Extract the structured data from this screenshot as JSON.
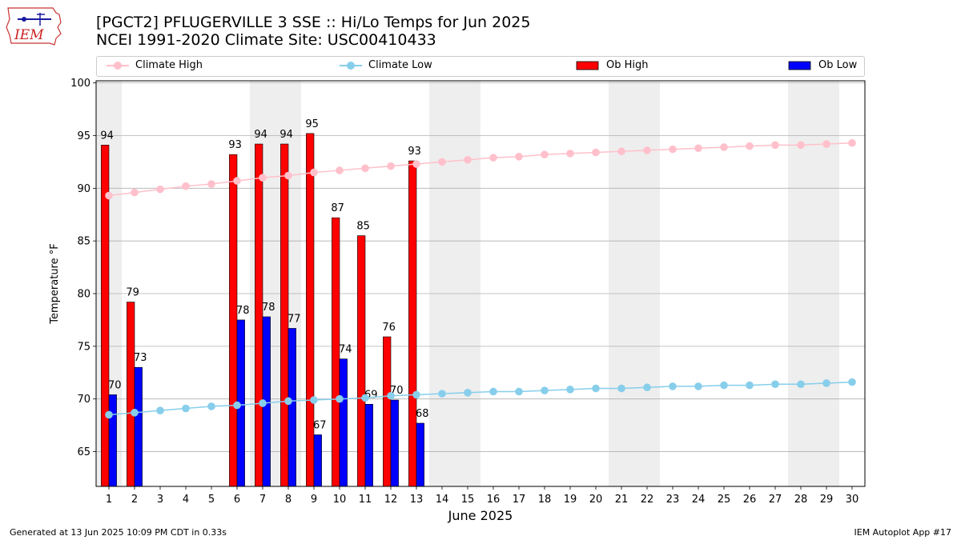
{
  "header": {
    "logo_text": "IEM",
    "title_line1": "[PGCT2] PFLUGERVILLE 3 SSE :: Hi/Lo Temps for Jun 2025",
    "title_line2": "NCEI 1991-2020 Climate Site: USC00410433"
  },
  "legend": [
    {
      "key": "climate_high",
      "label": "Climate High"
    },
    {
      "key": "climate_low",
      "label": "Climate Low"
    },
    {
      "key": "ob_high",
      "label": "Ob High"
    },
    {
      "key": "ob_low",
      "label": "Ob Low"
    }
  ],
  "colors": {
    "climate_high": "#ffc0cb",
    "climate_low": "#87ceeb",
    "ob_high": "#ff0000",
    "ob_low": "#0000ff",
    "weekend_shade": "#eeeeee",
    "grid": "#b0b0b0"
  },
  "chart_data": {
    "type": "bar",
    "xlabel": "June 2025",
    "ylabel": "Temperature °F",
    "ylim": [
      61.7,
      100.2
    ],
    "xlim": [
      0.5,
      30.5
    ],
    "yticks": [
      65,
      70,
      75,
      80,
      85,
      90,
      95,
      100
    ],
    "x": [
      1,
      2,
      3,
      4,
      5,
      6,
      7,
      8,
      9,
      10,
      11,
      12,
      13,
      14,
      15,
      16,
      17,
      18,
      19,
      20,
      21,
      22,
      23,
      24,
      25,
      26,
      27,
      28,
      29,
      30
    ],
    "shaded_day_ranges": [
      [
        0.5,
        1.5
      ],
      [
        6.5,
        8.5
      ],
      [
        13.5,
        15.5
      ],
      [
        20.5,
        22.5
      ],
      [
        27.5,
        29.5
      ]
    ],
    "grid": "horizontal",
    "series": [
      {
        "name": "Climate High",
        "type": "line",
        "values": [
          89.3,
          89.6,
          89.9,
          90.2,
          90.4,
          90.7,
          91.0,
          91.2,
          91.5,
          91.7,
          91.9,
          92.1,
          92.3,
          92.5,
          92.7,
          92.9,
          93.0,
          93.2,
          93.3,
          93.4,
          93.5,
          93.6,
          93.7,
          93.8,
          93.9,
          94.0,
          94.1,
          94.1,
          94.2,
          94.3
        ]
      },
      {
        "name": "Climate Low",
        "type": "line",
        "values": [
          68.5,
          68.7,
          68.9,
          69.1,
          69.3,
          69.4,
          69.6,
          69.8,
          69.9,
          70.0,
          70.1,
          70.3,
          70.4,
          70.5,
          70.6,
          70.7,
          70.7,
          70.8,
          70.9,
          71.0,
          71.0,
          71.1,
          71.2,
          71.2,
          71.3,
          71.3,
          71.4,
          71.4,
          71.5,
          71.6
        ]
      },
      {
        "name": "Ob High",
        "type": "bar",
        "values": [
          94.1,
          79.2,
          null,
          null,
          null,
          93.2,
          94.2,
          94.2,
          95.2,
          87.2,
          85.5,
          75.9,
          92.6,
          null,
          null,
          null,
          null,
          null,
          null,
          null,
          null,
          null,
          null,
          null,
          null,
          null,
          null,
          null,
          null,
          null
        ],
        "labels": [
          "94",
          "79",
          null,
          null,
          null,
          "93",
          "94",
          "94",
          "95",
          "87",
          "85",
          "76",
          "93"
        ]
      },
      {
        "name": "Ob Low",
        "type": "bar",
        "values": [
          70.4,
          73.0,
          null,
          null,
          null,
          77.5,
          77.8,
          76.7,
          66.6,
          73.8,
          69.5,
          69.9,
          67.7,
          null,
          null,
          null,
          null,
          null,
          null,
          null,
          null,
          null,
          null,
          null,
          null,
          null,
          null,
          null,
          null,
          null
        ],
        "labels": [
          "70",
          "73",
          null,
          null,
          null,
          "78",
          "78",
          "77",
          "67",
          "74",
          "69",
          "70",
          "68"
        ]
      }
    ]
  },
  "footer": {
    "left": "Generated at 13 Jun 2025 10:09 PM CDT in 0.33s",
    "right": "IEM Autoplot App #17"
  }
}
